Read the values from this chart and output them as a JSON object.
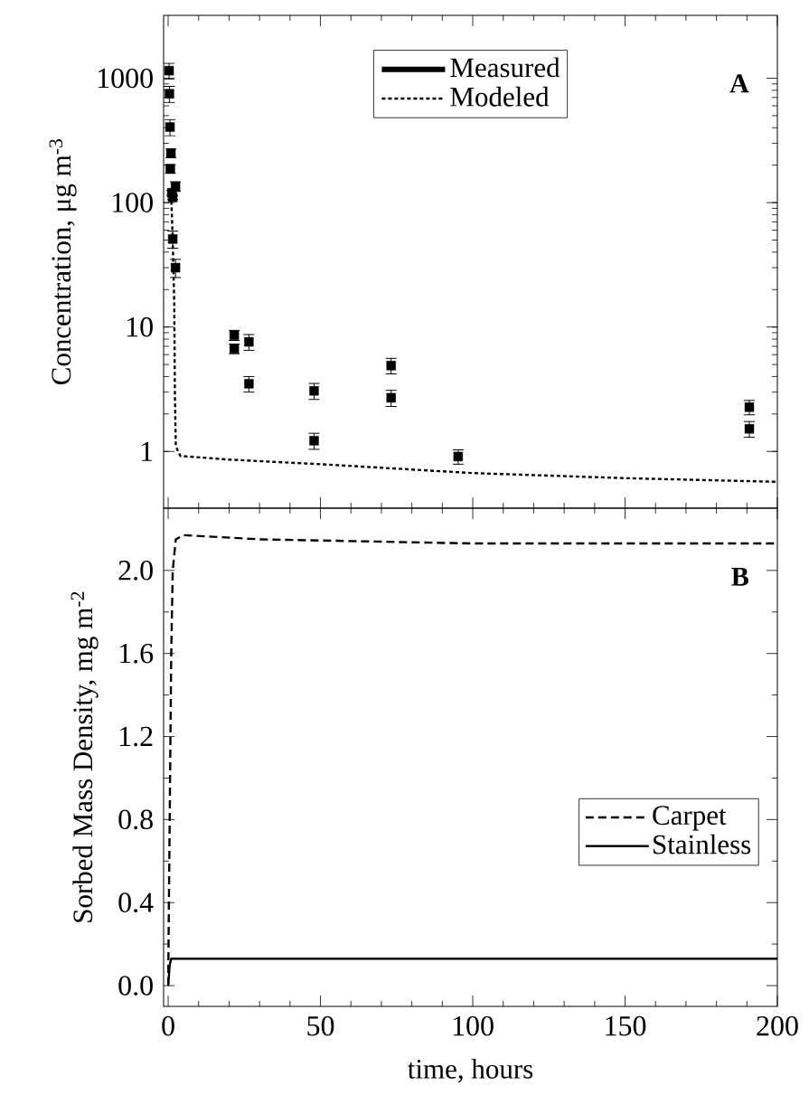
{
  "chart_data": [
    {
      "type": "scatter",
      "ylabel": "Concentration, μg m$^{-3}$",
      "log": "y",
      "xlim": [
        -1.5,
        200
      ],
      "ylim": [
        0.35,
        3200
      ],
      "xticks": [
        0,
        50,
        100,
        150,
        200
      ],
      "yticks": [
        1,
        10,
        100,
        1000
      ],
      "tick_labels": "y",
      "legend": "top",
      "grid": false,
      "annotations": [
        "A"
      ],
      "series": [
        {
          "name": "Measured",
          "type": "scatter",
          "color": "#000000",
          "marker": "square",
          "x": [
            0.3,
            0.4,
            0.6,
            0.9,
            0.7,
            2.4,
            1.2,
            1.5,
            1.5,
            2.4,
            21.7,
            21.7,
            26.5,
            26.5,
            47.9,
            47.9,
            73.2,
            73.2,
            95.2,
            190.8,
            190.8
          ],
          "values": [
            1150,
            750,
            405,
            250,
            187,
            135,
            120,
            110,
            51,
            30,
            8.6,
            6.7,
            7.6,
            3.5,
            3.07,
            1.22,
            4.9,
            2.7,
            0.91,
            2.27,
            1.52
          ],
          "errors": [
            170,
            110,
            60,
            20,
            15,
            12,
            5,
            4,
            8,
            5,
            0.8,
            0.6,
            1.1,
            0.5,
            0.45,
            0.18,
            0.7,
            0.4,
            0.12,
            0.3,
            0.22
          ]
        },
        {
          "name": "Modeled",
          "type": "line",
          "color": "#000000",
          "line_style": "dotted",
          "marker": "none",
          "x": [
            0.9,
            1.5,
            2.0,
            2.2,
            2.5,
            4,
            20,
            50,
            100,
            150,
            200
          ],
          "values": [
            130,
            50,
            15,
            3,
            1.1,
            0.92,
            0.86,
            0.79,
            0.67,
            0.61,
            0.57
          ]
        }
      ]
    },
    {
      "type": "line",
      "ylabel": "Sorbed Mass Density, mg m$^{-2}$",
      "xlabel": "time, hours",
      "xlim": [
        -1.5,
        200
      ],
      "ylim": [
        -0.1,
        2.3
      ],
      "xticks": [
        0,
        50,
        100,
        150,
        200
      ],
      "yticks": [
        {
          "value": 0,
          "label": "0.0"
        },
        0.4,
        0.8,
        1.2,
        1.6,
        {
          "value": 2,
          "label": "2.0"
        }
      ],
      "legend": "right",
      "grid": false,
      "annotations": [
        "B"
      ],
      "series": [
        {
          "name": "Carpet",
          "color": "#000000",
          "line_style": "dashed",
          "marker": "none",
          "x": [
            0,
            0.5,
            1,
            1.5,
            2.5,
            5,
            30,
            100,
            200
          ],
          "values": [
            0,
            0.8,
            1.6,
            2.0,
            2.15,
            2.17,
            2.15,
            2.13,
            2.13
          ]
        },
        {
          "name": "Stainless",
          "color": "#000000",
          "line_style": "solid",
          "marker": "none",
          "x": [
            0,
            0.5,
            1,
            200
          ],
          "values": [
            0,
            0.1,
            0.13,
            0.13
          ]
        }
      ]
    }
  ]
}
